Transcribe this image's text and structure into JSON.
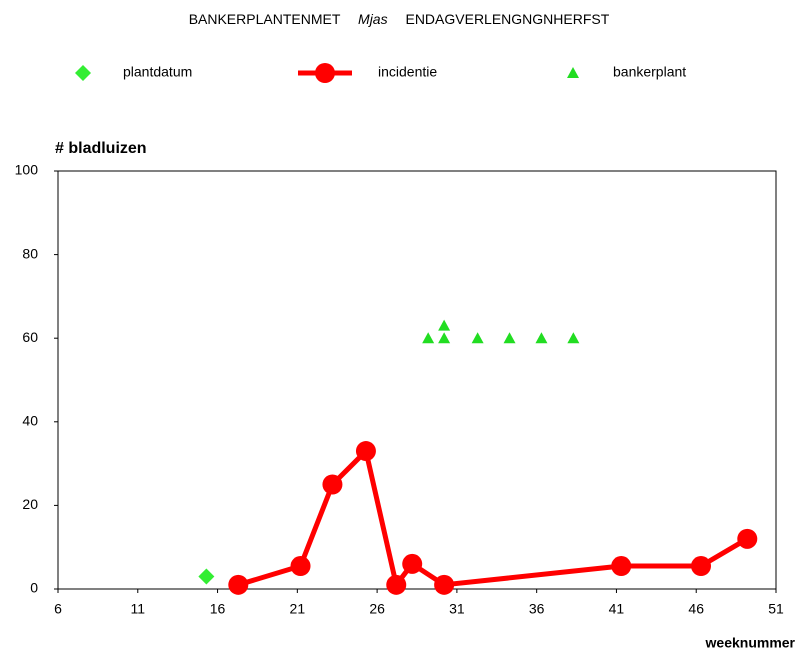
{
  "chart_data": {
    "type": "line",
    "title": [
      "BANKERPLANTENMET",
      "Mjas",
      "ENDAGVERLENGNGNHERFST"
    ],
    "y_label": "# bladluizen",
    "x_label": "weeknummer",
    "xlim": [
      6,
      51
    ],
    "xticks": [
      6,
      11,
      16,
      21,
      26,
      31,
      36,
      41,
      46,
      51
    ],
    "ylim": [
      0,
      100
    ],
    "yticks": [
      0,
      20,
      40,
      60,
      80,
      100
    ],
    "series": [
      {
        "name": "plantdatum",
        "color": "#33ee33",
        "marker": "diamond",
        "x": [
          15.3
        ],
        "values": [
          3
        ]
      },
      {
        "name": "incidentie",
        "color": "#ff0000",
        "marker": "circle",
        "x": [
          17.3,
          21.2,
          23.2,
          25.3,
          27.2,
          28.2,
          30.2,
          41.3,
          46.3,
          49.2
        ],
        "values": [
          1,
          5.5,
          25,
          33,
          1,
          6,
          1,
          5.5,
          5.5,
          12
        ]
      },
      {
        "name": "bankerplant",
        "color": "#22dd22",
        "marker": "triangle",
        "x": [
          29.2,
          30.2,
          30.2,
          32.3,
          34.3,
          36.3,
          38.3
        ],
        "values": [
          60,
          60,
          63,
          60,
          60,
          60,
          60
        ]
      }
    ]
  }
}
